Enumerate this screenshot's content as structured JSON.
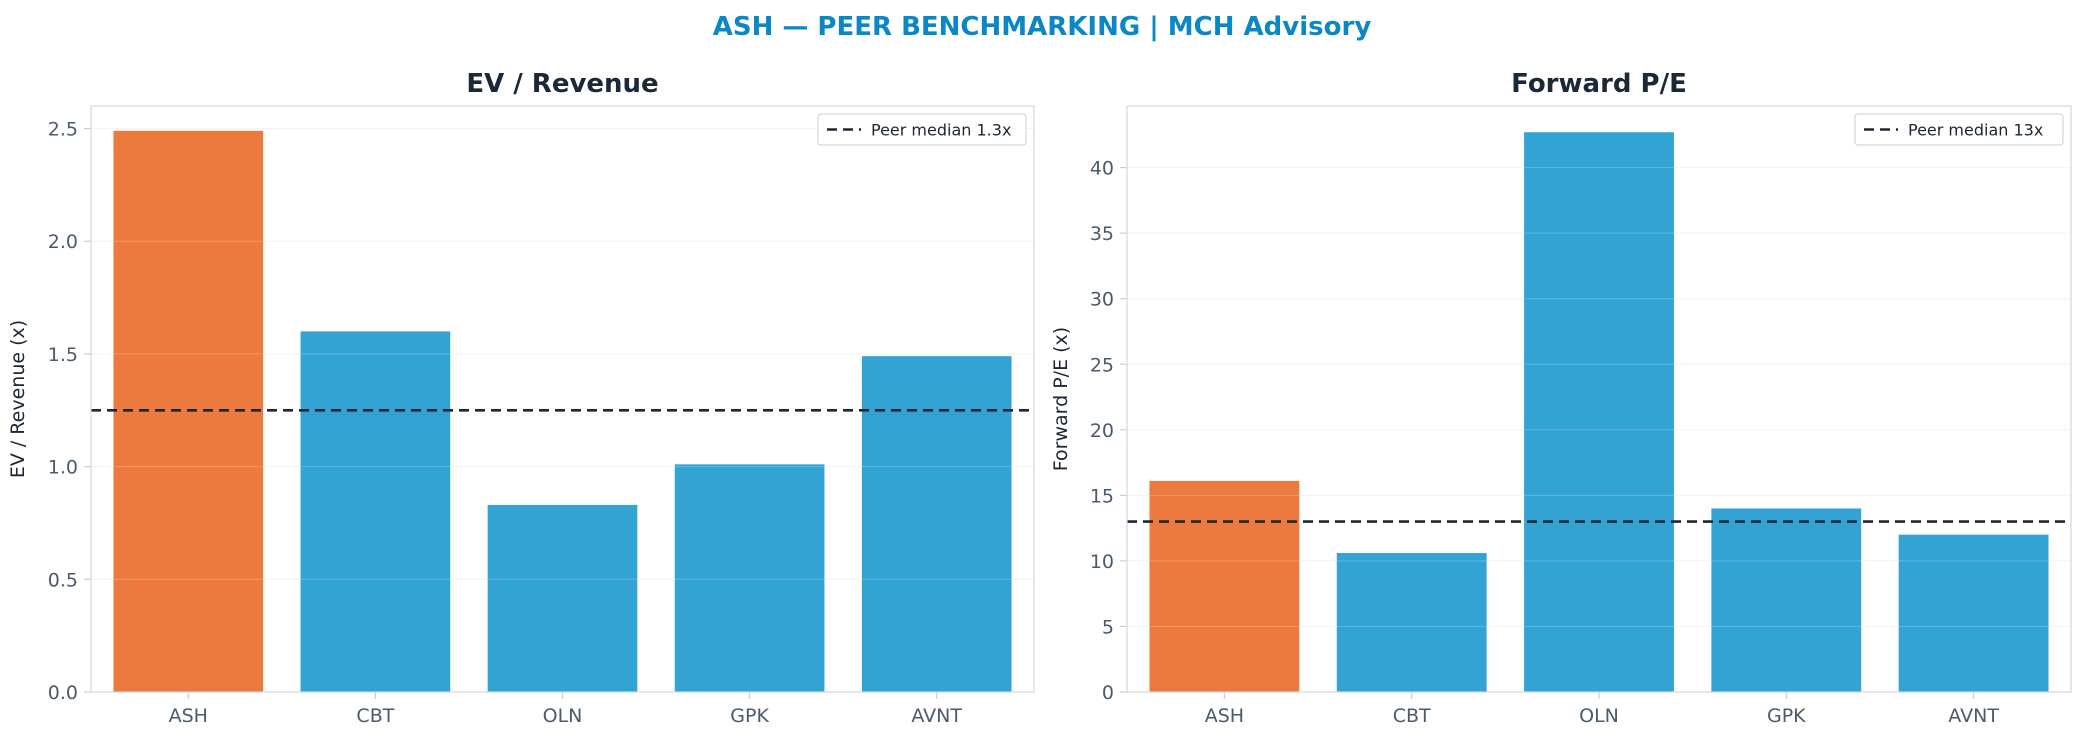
{
  "figure_title": "ASH — PEER BENCHMARKING | MCH Advisory",
  "colors": {
    "title": "#0a87c5",
    "highlight": "#ec7a3e",
    "peer": "#33a3d3",
    "median_line": "#1c2733",
    "axis_text": "#4a5b6e",
    "panel_title": "#1b2838"
  },
  "chart_data": [
    {
      "type": "bar",
      "title": "EV / Revenue",
      "xlabel": "",
      "ylabel": "EV / Revenue (x)",
      "categories": [
        "ASH",
        "CBT",
        "OLN",
        "GPK",
        "AVNT"
      ],
      "values": [
        2.49,
        1.6,
        0.83,
        1.01,
        1.49
      ],
      "highlight_category": "ASH",
      "ylim": [
        0,
        2.6
      ],
      "yticks": [
        "0.0",
        "0.5",
        "1.0",
        "1.5",
        "2.0",
        "2.5"
      ],
      "reference_line": {
        "value": 1.25,
        "label": "Peer median 1.3x",
        "style": "dashed"
      },
      "legend_position": "top-right",
      "grid": "horizontal"
    },
    {
      "type": "bar",
      "title": "Forward P/E",
      "xlabel": "",
      "ylabel": "Forward P/E (x)",
      "categories": [
        "ASH",
        "CBT",
        "OLN",
        "GPK",
        "AVNT"
      ],
      "values": [
        16.1,
        10.6,
        42.7,
        14.0,
        12.0
      ],
      "highlight_category": "ASH",
      "ylim": [
        0,
        44.7
      ],
      "yticks": [
        "0",
        "5",
        "10",
        "15",
        "20",
        "25",
        "30",
        "35",
        "40"
      ],
      "reference_line": {
        "value": 13.0,
        "label": "Peer median 13x",
        "style": "dashed"
      },
      "legend_position": "top-right",
      "grid": "horizontal"
    }
  ]
}
